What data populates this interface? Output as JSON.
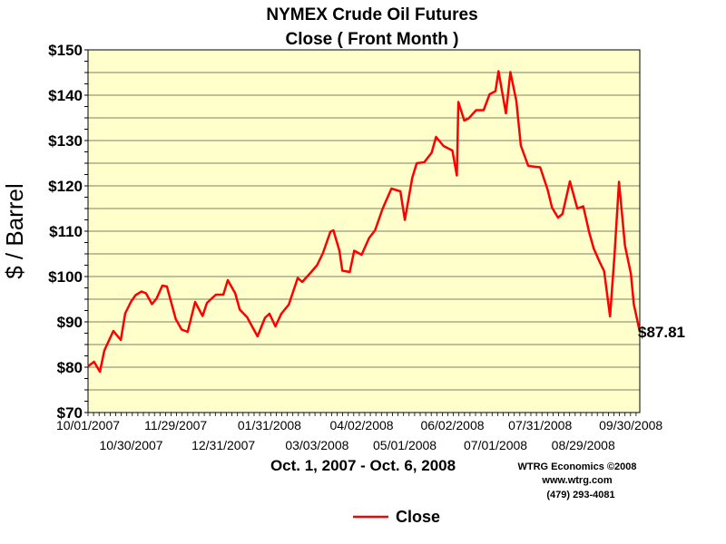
{
  "chart_data": {
    "type": "line",
    "title": "NYMEX Crude Oil Futures",
    "subtitle": "Close ( Front Month )",
    "ylabel": "$ / Barrel",
    "xlabel": "Oct. 1, 2007 - Oct. 6, 2008",
    "ylim": [
      70,
      150
    ],
    "yticks": [
      70,
      80,
      90,
      100,
      110,
      120,
      130,
      140,
      150
    ],
    "ytick_labels": [
      "$70",
      "$80",
      "$90",
      "$100",
      "$110",
      "$120",
      "$130",
      "$140",
      "$150"
    ],
    "xlim": [
      "2007-10-01",
      "2008-10-06"
    ],
    "xticks_upper": [
      "10/01/2007",
      "11/29/2007",
      "01/31/2008",
      "04/02/2008",
      "06/02/2008",
      "07/31/2008",
      "09/30/2008"
    ],
    "xticks_lower": [
      "10/30/2007",
      "12/31/2007",
      "03/03/2008",
      "05/01/2008",
      "07/01/2008",
      "08/29/2008"
    ],
    "last_value_label": "$87.81",
    "grid": true,
    "legend_position": "bottom-center",
    "series": [
      {
        "name": "Close",
        "color": "#ff0000",
        "x": [
          "2007-10-01",
          "2007-10-05",
          "2007-10-09",
          "2007-10-12",
          "2007-10-18",
          "2007-10-23",
          "2007-10-26",
          "2007-10-30",
          "2007-11-02",
          "2007-11-06",
          "2007-11-09",
          "2007-11-13",
          "2007-11-16",
          "2007-11-20",
          "2007-11-23",
          "2007-11-29",
          "2007-12-03",
          "2007-12-07",
          "2007-12-12",
          "2007-12-17",
          "2007-12-20",
          "2007-12-26",
          "2007-12-31",
          "2008-01-03",
          "2008-01-08",
          "2008-01-11",
          "2008-01-16",
          "2008-01-18",
          "2008-01-23",
          "2008-01-28",
          "2008-01-31",
          "2008-02-04",
          "2008-02-08",
          "2008-02-13",
          "2008-02-19",
          "2008-02-22",
          "2008-02-27",
          "2008-03-03",
          "2008-03-07",
          "2008-03-12",
          "2008-03-14",
          "2008-03-18",
          "2008-03-20",
          "2008-03-25",
          "2008-03-28",
          "2008-04-02",
          "2008-04-07",
          "2008-04-11",
          "2008-04-16",
          "2008-04-22",
          "2008-04-28",
          "2008-05-01",
          "2008-05-06",
          "2008-05-09",
          "2008-05-14",
          "2008-05-19",
          "2008-05-22",
          "2008-05-27",
          "2008-06-02",
          "2008-06-05",
          "2008-06-06",
          "2008-06-10",
          "2008-06-13",
          "2008-06-18",
          "2008-06-23",
          "2008-06-27",
          "2008-07-01",
          "2008-07-03",
          "2008-07-08",
          "2008-07-11",
          "2008-07-15",
          "2008-07-18",
          "2008-07-23",
          "2008-07-28",
          "2008-07-31",
          "2008-08-05",
          "2008-08-08",
          "2008-08-12",
          "2008-08-15",
          "2008-08-20",
          "2008-08-25",
          "2008-08-29",
          "2008-09-02",
          "2008-09-05",
          "2008-09-09",
          "2008-09-12",
          "2008-09-16",
          "2008-09-19",
          "2008-09-22",
          "2008-09-26",
          "2008-09-30",
          "2008-10-02",
          "2008-10-06"
        ],
        "values": [
          80.2,
          81.2,
          79.0,
          83.7,
          88.0,
          86.0,
          91.9,
          94.5,
          95.9,
          96.7,
          96.3,
          93.9,
          95.1,
          98.0,
          97.8,
          90.6,
          88.3,
          87.8,
          94.4,
          91.3,
          94.2,
          96.0,
          96.0,
          99.2,
          96.3,
          92.7,
          91.0,
          89.8,
          86.8,
          90.9,
          91.8,
          89.0,
          91.8,
          93.8,
          99.7,
          98.8,
          100.6,
          102.5,
          105.2,
          109.9,
          110.2,
          105.7,
          101.3,
          101.0,
          105.7,
          104.8,
          108.5,
          110.2,
          114.9,
          119.4,
          118.8,
          112.5,
          121.8,
          125.0,
          125.2,
          127.3,
          130.8,
          128.8,
          127.8,
          122.3,
          138.5,
          134.4,
          134.9,
          136.7,
          136.7,
          140.2,
          140.9,
          145.3,
          136.0,
          145.1,
          138.7,
          128.9,
          124.4,
          124.2,
          124.1,
          119.2,
          115.2,
          113.0,
          113.8,
          121.0,
          115.0,
          115.5,
          109.7,
          106.2,
          103.2,
          101.2,
          91.2,
          104.6,
          120.9,
          106.9,
          100.6,
          93.9,
          87.8
        ]
      }
    ]
  },
  "credits": {
    "line1": "WTRG Economics  ©2008",
    "line2": "www.wtrg.com",
    "line3": "(479) 293-4081"
  },
  "legend": {
    "label": "Close"
  }
}
